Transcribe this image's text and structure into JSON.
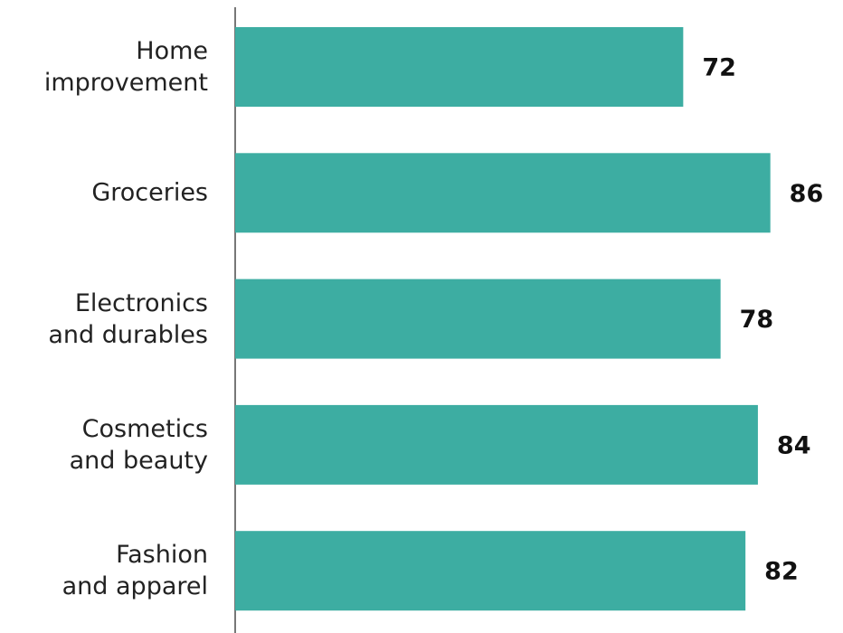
{
  "chart_data": {
    "type": "bar",
    "orientation": "horizontal",
    "categories": [
      "Home\nimprovement",
      "Groceries",
      "Electronics\nand durables",
      "Cosmetics\nand beauty",
      "Fashion\nand apparel"
    ],
    "values": [
      72,
      86,
      78,
      84,
      82
    ],
    "color": "#3dada2",
    "xlim": [
      0,
      100
    ]
  }
}
